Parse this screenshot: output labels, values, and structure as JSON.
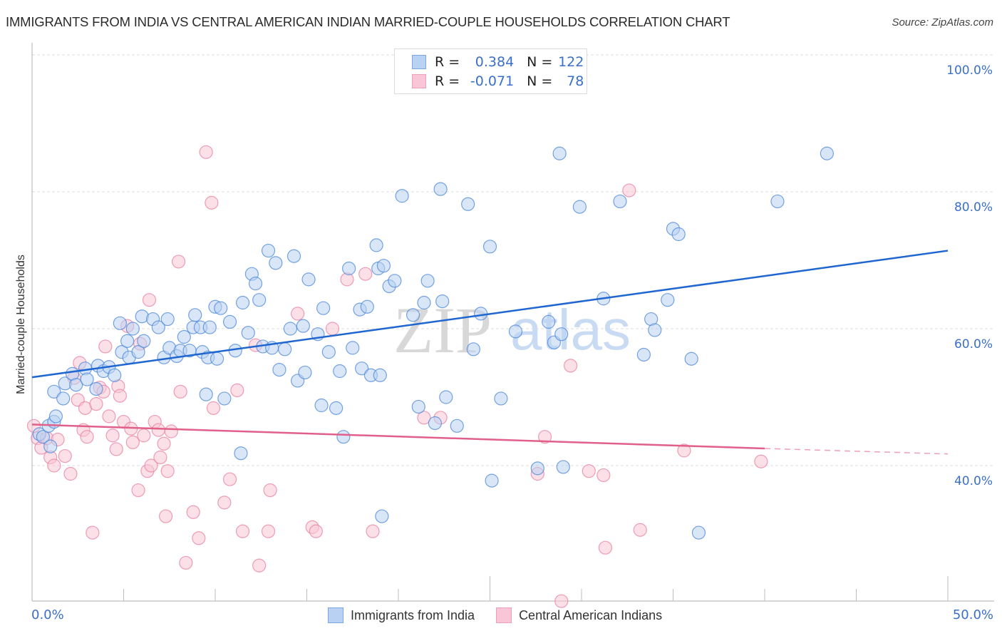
{
  "header": {
    "title": "IMMIGRANTS FROM INDIA VS CENTRAL AMERICAN INDIAN MARRIED-COUPLE HOUSEHOLDS CORRELATION CHART",
    "source": "Source: ZipAtlas.com"
  },
  "watermark": {
    "zip": "ZIP",
    "atlas": "atlas"
  },
  "legend": {
    "series": [
      {
        "r_label": "R =",
        "r_value": "0.384",
        "n_label": "N =",
        "n_value": "122"
      },
      {
        "r_label": "R =",
        "r_value": "-0.071",
        "n_label": "N =",
        "n_value": "78"
      }
    ]
  },
  "chart_data": {
    "type": "scatter",
    "title": "IMMIGRANTS FROM INDIA VS CENTRAL AMERICAN INDIAN MARRIED-COUPLE HOUSEHOLDS CORRELATION CHART",
    "xlabel": "",
    "ylabel": "Married-couple Households",
    "xlim": [
      0,
      50
    ],
    "ylim": [
      22,
      102
    ],
    "x_tick_labels": [
      "0.0%",
      "50.0%"
    ],
    "y_ticks": [
      40,
      60,
      80,
      100
    ],
    "y_tick_labels": [
      "40.0%",
      "60.0%",
      "80.0%",
      "100.0%"
    ],
    "grid": true,
    "legend_position": "top-center",
    "colors": {
      "india": "#4a86d8",
      "india_fill": "#b9d2f3",
      "cai": "#e87fa0",
      "cai_fill": "#f8c6d6",
      "india_line": "#1f66d1",
      "cai_line": "#e0608a"
    },
    "series": [
      {
        "name": "Immigrants from India",
        "r": 0.384,
        "n": 122,
        "trend": {
          "x": [
            0,
            50
          ],
          "y": [
            52.9,
            71.4
          ]
        },
        "points": [
          [
            0.4,
            44.6
          ],
          [
            0.6,
            44.2
          ],
          [
            0.9,
            45.8
          ],
          [
            1.0,
            42.8
          ],
          [
            1.2,
            46.4
          ],
          [
            1.3,
            47.2
          ],
          [
            1.2,
            50.8
          ],
          [
            1.7,
            49.8
          ],
          [
            1.8,
            52.0
          ],
          [
            2.2,
            53.4
          ],
          [
            2.4,
            51.8
          ],
          [
            2.9,
            54.2
          ],
          [
            3.0,
            52.6
          ],
          [
            3.5,
            51.2
          ],
          [
            3.6,
            54.6
          ],
          [
            3.9,
            53.8
          ],
          [
            4.2,
            54.4
          ],
          [
            4.5,
            53.2
          ],
          [
            4.8,
            60.8
          ],
          [
            4.9,
            56.6
          ],
          [
            5.2,
            58.2
          ],
          [
            5.3,
            55.8
          ],
          [
            5.5,
            60.0
          ],
          [
            5.8,
            56.6
          ],
          [
            6.1,
            58.2
          ],
          [
            6.0,
            61.8
          ],
          [
            6.6,
            61.4
          ],
          [
            6.9,
            60.2
          ],
          [
            7.2,
            55.8
          ],
          [
            7.4,
            61.4
          ],
          [
            7.5,
            57.2
          ],
          [
            7.9,
            56.0
          ],
          [
            8.1,
            56.8
          ],
          [
            8.3,
            58.8
          ],
          [
            8.6,
            56.8
          ],
          [
            8.8,
            60.2
          ],
          [
            8.9,
            62.0
          ],
          [
            9.3,
            56.6
          ],
          [
            9.6,
            55.8
          ],
          [
            9.2,
            60.2
          ],
          [
            9.5,
            50.4
          ],
          [
            9.7,
            60.2
          ],
          [
            10.0,
            63.2
          ],
          [
            10.3,
            63.0
          ],
          [
            10.1,
            55.6
          ],
          [
            10.5,
            49.8
          ],
          [
            10.8,
            61.0
          ],
          [
            11.1,
            56.8
          ],
          [
            11.5,
            63.8
          ],
          [
            11.4,
            41.8
          ],
          [
            11.8,
            59.4
          ],
          [
            12.0,
            68.0
          ],
          [
            12.2,
            66.6
          ],
          [
            12.4,
            64.2
          ],
          [
            12.6,
            57.4
          ],
          [
            12.9,
            71.4
          ],
          [
            13.1,
            57.2
          ],
          [
            13.3,
            69.6
          ],
          [
            13.5,
            54.0
          ],
          [
            13.8,
            57.0
          ],
          [
            14.1,
            60.0
          ],
          [
            14.3,
            70.6
          ],
          [
            14.5,
            52.4
          ],
          [
            14.8,
            60.4
          ],
          [
            14.9,
            53.6
          ],
          [
            15.1,
            67.2
          ],
          [
            15.6,
            59.2
          ],
          [
            15.8,
            48.8
          ],
          [
            15.9,
            63.0
          ],
          [
            16.2,
            56.6
          ],
          [
            16.6,
            48.4
          ],
          [
            16.8,
            53.8
          ],
          [
            17.0,
            44.2
          ],
          [
            17.3,
            68.8
          ],
          [
            17.5,
            57.2
          ],
          [
            17.9,
            62.8
          ],
          [
            18.0,
            54.2
          ],
          [
            18.3,
            63.2
          ],
          [
            18.5,
            53.2
          ],
          [
            18.8,
            72.2
          ],
          [
            18.9,
            68.8
          ],
          [
            19.2,
            69.2
          ],
          [
            19.0,
            53.2
          ],
          [
            19.5,
            66.2
          ],
          [
            19.8,
            67.0
          ],
          [
            19.1,
            32.6
          ],
          [
            20.2,
            79.4
          ],
          [
            20.8,
            62.0
          ],
          [
            21.1,
            48.6
          ],
          [
            21.4,
            63.8
          ],
          [
            21.6,
            67.0
          ],
          [
            22.0,
            46.2
          ],
          [
            22.3,
            80.4
          ],
          [
            22.4,
            64.0
          ],
          [
            22.6,
            50.0
          ],
          [
            23.2,
            45.8
          ],
          [
            23.8,
            78.2
          ],
          [
            24.1,
            57.0
          ],
          [
            24.5,
            62.2
          ],
          [
            25.0,
            72.0
          ],
          [
            25.1,
            37.8
          ],
          [
            25.6,
            49.8
          ],
          [
            26.4,
            59.6
          ],
          [
            27.6,
            39.6
          ],
          [
            28.2,
            61.0
          ],
          [
            28.5,
            58.0
          ],
          [
            28.8,
            85.6
          ],
          [
            28.9,
            59.2
          ],
          [
            29.0,
            39.8
          ],
          [
            29.9,
            77.8
          ],
          [
            31.2,
            64.4
          ],
          [
            32.1,
            78.6
          ],
          [
            33.4,
            56.2
          ],
          [
            33.8,
            61.4
          ],
          [
            34.0,
            59.8
          ],
          [
            34.7,
            64.2
          ],
          [
            35.0,
            74.6
          ],
          [
            35.3,
            73.8
          ],
          [
            36.0,
            55.6
          ],
          [
            36.4,
            30.2
          ],
          [
            40.7,
            78.6
          ],
          [
            43.4,
            85.6
          ]
        ]
      },
      {
        "name": "Central American Indians",
        "r": -0.071,
        "n": 78,
        "trend": {
          "x": [
            0,
            40
          ],
          "y": [
            46.0,
            42.5
          ]
        },
        "trend_dashed": {
          "x": [
            40,
            50
          ],
          "y": [
            42.5,
            41.7
          ]
        },
        "points": [
          [
            0.1,
            45.8
          ],
          [
            0.3,
            44.0
          ],
          [
            0.5,
            42.6
          ],
          [
            0.8,
            44.0
          ],
          [
            1.0,
            41.2
          ],
          [
            1.2,
            40.0
          ],
          [
            1.4,
            43.8
          ],
          [
            1.8,
            41.4
          ],
          [
            2.1,
            38.8
          ],
          [
            2.3,
            52.8
          ],
          [
            2.5,
            49.6
          ],
          [
            2.6,
            55.0
          ],
          [
            2.8,
            45.2
          ],
          [
            2.9,
            48.4
          ],
          [
            3.0,
            44.2
          ],
          [
            3.3,
            30.2
          ],
          [
            3.5,
            49.0
          ],
          [
            3.7,
            51.4
          ],
          [
            3.9,
            50.8
          ],
          [
            4.0,
            57.4
          ],
          [
            4.2,
            47.2
          ],
          [
            4.4,
            44.4
          ],
          [
            4.6,
            42.4
          ],
          [
            4.7,
            51.6
          ],
          [
            4.8,
            50.2
          ],
          [
            5.0,
            46.4
          ],
          [
            5.2,
            60.4
          ],
          [
            5.4,
            45.4
          ],
          [
            5.5,
            43.4
          ],
          [
            5.8,
            36.4
          ],
          [
            5.9,
            57.8
          ],
          [
            6.1,
            44.4
          ],
          [
            6.3,
            39.2
          ],
          [
            6.4,
            64.2
          ],
          [
            6.5,
            40.0
          ],
          [
            6.7,
            46.4
          ],
          [
            6.9,
            45.2
          ],
          [
            7.0,
            41.2
          ],
          [
            7.2,
            43.2
          ],
          [
            7.3,
            32.6
          ],
          [
            7.4,
            39.2
          ],
          [
            7.6,
            45.0
          ],
          [
            8.0,
            69.8
          ],
          [
            8.1,
            50.8
          ],
          [
            8.4,
            25.8
          ],
          [
            8.8,
            33.2
          ],
          [
            9.1,
            29.4
          ],
          [
            9.5,
            85.8
          ],
          [
            9.8,
            78.4
          ],
          [
            9.9,
            48.4
          ],
          [
            10.5,
            34.6
          ],
          [
            10.8,
            38.0
          ],
          [
            11.2,
            51.0
          ],
          [
            11.5,
            30.4
          ],
          [
            12.2,
            57.6
          ],
          [
            12.4,
            25.4
          ],
          [
            12.9,
            30.4
          ],
          [
            13.0,
            36.4
          ],
          [
            14.5,
            62.2
          ],
          [
            15.3,
            31.0
          ],
          [
            15.5,
            30.4
          ],
          [
            16.4,
            60.0
          ],
          [
            17.2,
            67.2
          ],
          [
            18.2,
            68.0
          ],
          [
            18.6,
            30.4
          ],
          [
            21.4,
            47.0
          ],
          [
            22.3,
            47.0
          ],
          [
            27.6,
            38.8
          ],
          [
            28.0,
            44.2
          ],
          [
            28.9,
            20.2
          ],
          [
            29.4,
            54.6
          ],
          [
            30.4,
            39.2
          ],
          [
            31.2,
            38.6
          ],
          [
            31.3,
            28.0
          ],
          [
            32.6,
            80.2
          ],
          [
            33.2,
            30.6
          ],
          [
            35.6,
            42.2
          ],
          [
            39.8,
            40.6
          ]
        ]
      }
    ]
  },
  "bottom_legend": {
    "items": [
      {
        "label": "Immigrants from India"
      },
      {
        "label": "Central American Indians"
      }
    ]
  },
  "axes": {
    "x_min_label": "0.0%",
    "x_max_label": "50.0%"
  }
}
